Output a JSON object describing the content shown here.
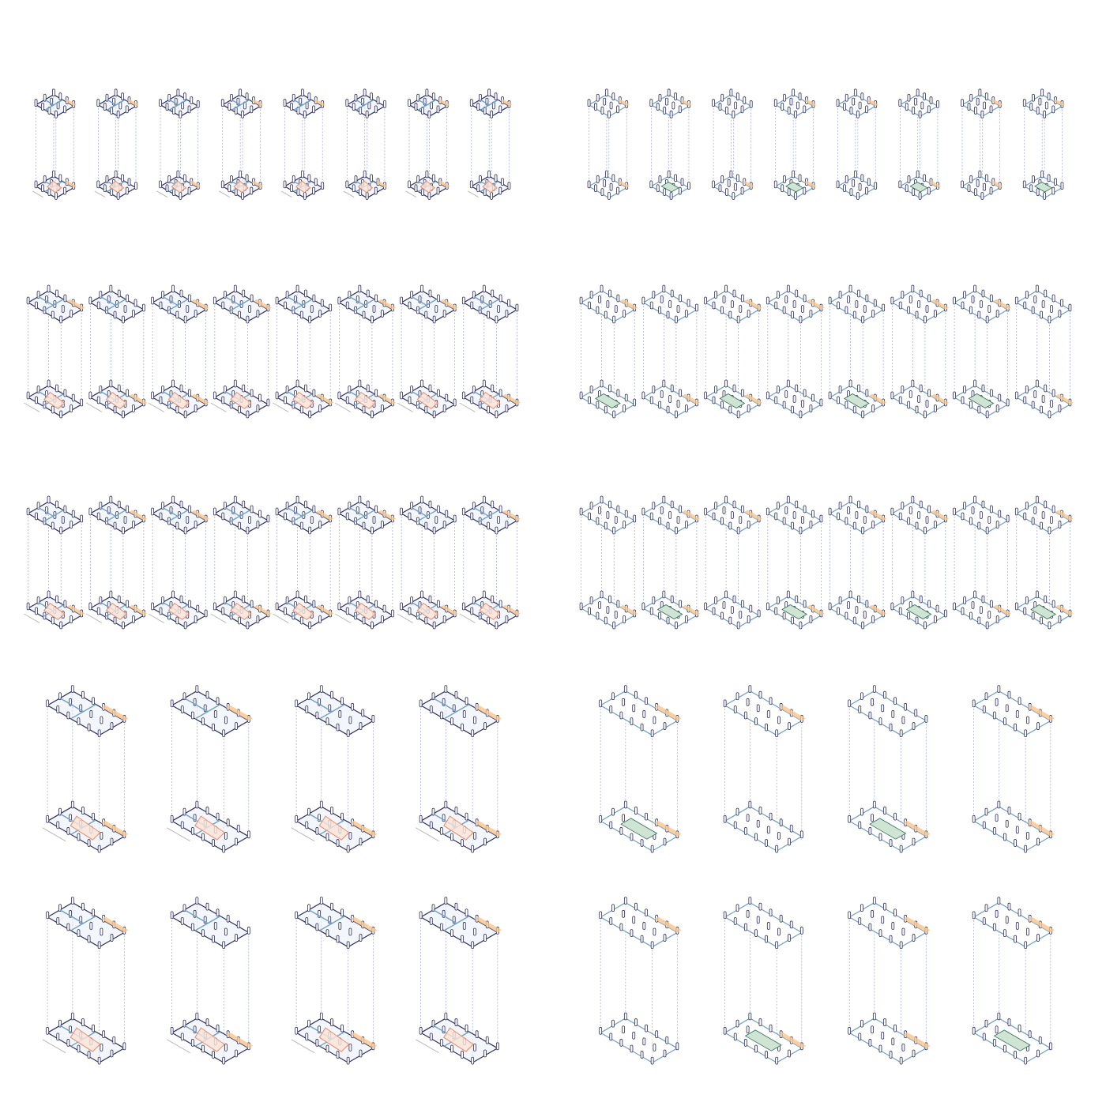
{
  "sheet": {
    "panels": [
      {
        "name": "housing-layouts",
        "rows": [
          {
            "columns": 8,
            "size": "small",
            "depth": 1
          },
          {
            "columns": 8,
            "size": "medium",
            "depth": 2
          },
          {
            "columns": 8,
            "size": "medium",
            "depth": 2
          },
          {
            "columns": 4,
            "size": "large",
            "depth": 3
          },
          {
            "columns": 4,
            "size": "large",
            "depth": 3
          }
        ]
      },
      {
        "name": "structural-grids",
        "rows": [
          {
            "columns": 8,
            "size": "small",
            "depth": 1
          },
          {
            "columns": 8,
            "size": "medium",
            "depth": 2
          },
          {
            "columns": 8,
            "size": "medium",
            "depth": 2
          },
          {
            "columns": 4,
            "size": "large",
            "depth": 3
          },
          {
            "columns": 4,
            "size": "large",
            "depth": 3
          }
        ]
      }
    ]
  },
  "colors": {
    "structure": "#2e2f5c",
    "partition": "#6f9fc6",
    "partition_fill": "#e7f0f7",
    "dashed_guide": "#8a96c4",
    "balcony": "#f6c48c",
    "circulation_route": "#ea8a6a",
    "circulation_fill": "#fbe3d8",
    "stair_fill": "#cfe4d3",
    "stair_line": "#2f6e5b",
    "ground": "#b9b9b9"
  }
}
